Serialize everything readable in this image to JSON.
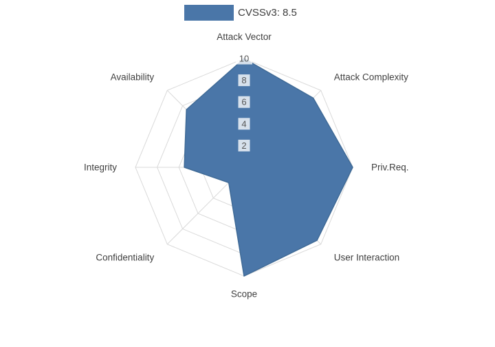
{
  "legend": {
    "label": "CVSSv3: 8.5",
    "swatch_color": "#4a76a8"
  },
  "chart_data": {
    "type": "radar",
    "title": "CVSSv3: 8.5",
    "categories": [
      "Attack Vector",
      "Attack Complexity",
      "Priv.Req.",
      "User Interaction",
      "Scope",
      "Confidentiality",
      "Integrity",
      "Availability"
    ],
    "series": [
      {
        "name": "CVSSv3: 8.5",
        "values": [
          10,
          9,
          10,
          9.5,
          10,
          2,
          5.5,
          7.5
        ]
      }
    ],
    "radial_ticks": [
      2,
      4,
      6,
      8,
      10
    ],
    "radial_range": [
      0,
      10
    ],
    "grid": true,
    "grid_shape": "polygon",
    "legend_position": "top-center",
    "fill_color": "#4a76a8",
    "stroke_color": "#3f6a96",
    "grid_color": "#d9d9d9",
    "label_color": "#3f3f3f",
    "tick_color": "#555555",
    "tick_box_color": "rgba(255,255,255,0.78)"
  }
}
